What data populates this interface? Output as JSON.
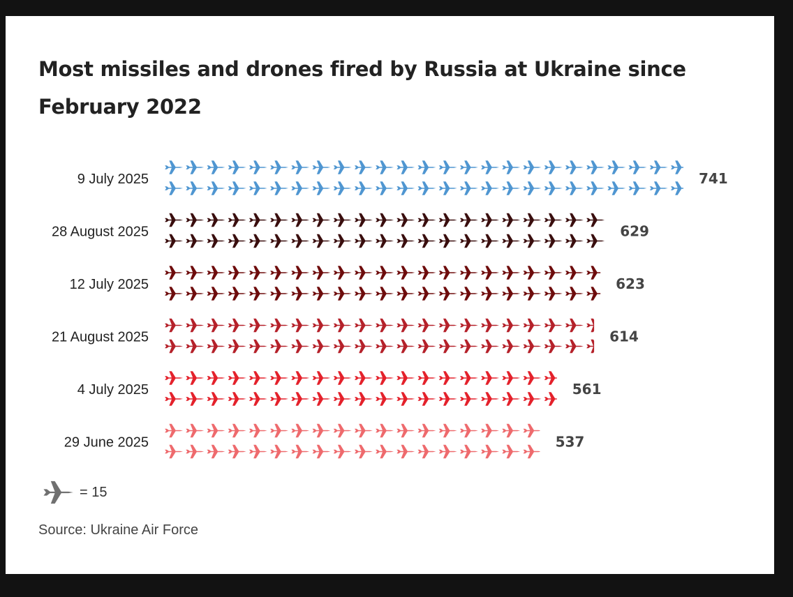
{
  "title": "Most missiles and drones fired by Russia at Ukraine since February 2022",
  "legend": {
    "icon": "plane-icon",
    "label": "= 15",
    "icon_color": "#707070"
  },
  "source": "Source: Ukraine Air Force",
  "chart_data": {
    "type": "pictogram-bar",
    "title": "Most missiles and drones fired by Russia at Ukraine since February 2022",
    "unit_per_icon": 15,
    "icon": "plane-icon",
    "rows_per_bar": 2,
    "categories": [
      "9 July 2025",
      "28 August 2025",
      "12 July 2025",
      "21 August 2025",
      "4 July 2025",
      "29 June 2025"
    ],
    "values": [
      741,
      629,
      623,
      614,
      561,
      537
    ],
    "colors": [
      "#4f96d1",
      "#3a0e0e",
      "#6e0c0c",
      "#b5212a",
      "#e4212b",
      "#ee6a6d"
    ],
    "source": "Source: Ukraine Air Force"
  }
}
